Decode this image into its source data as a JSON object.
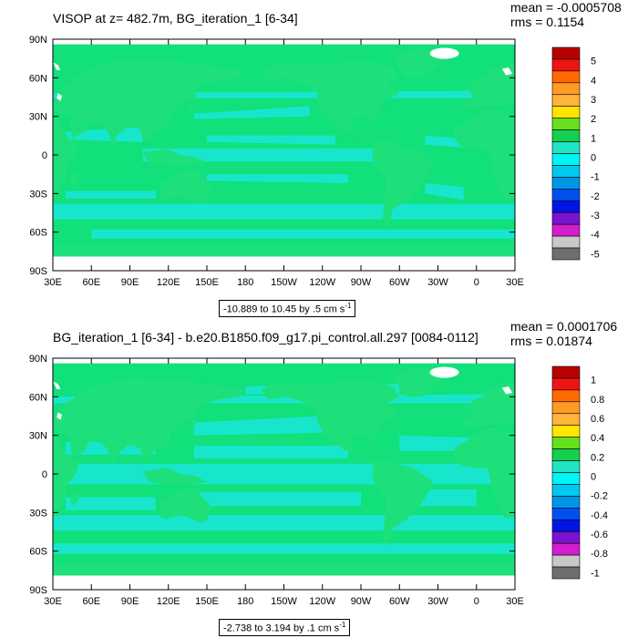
{
  "panels": [
    {
      "title": "VISOP at z= 482.7m, BG_iteration_1 [6-34]",
      "mean": "mean = -0.0005708",
      "rms": "rms = 0.1154",
      "range_label": "-10.889 to 10.45 by .5 cm s",
      "range_sup": "-1",
      "colorbar_labels": [
        "5",
        "4",
        "3",
        "2",
        "1",
        "0",
        "-1",
        "-2",
        "-3",
        "-4",
        "-5"
      ]
    },
    {
      "title": "BG_iteration_1 [6-34] - b.e20.B1850.f09_g17.pi_control.all.297 [0084-0112]",
      "mean": "mean = 0.0001706",
      "rms": "rms = 0.01874",
      "range_label": "-2.738 to 3.194 by .1 cm s",
      "range_sup": "-1",
      "colorbar_labels": [
        "1",
        "0.8",
        "0.6",
        "0.4",
        "0.2",
        "0",
        "-0.2",
        "-0.4",
        "-0.6",
        "-0.8",
        "-1"
      ]
    }
  ],
  "colors": {
    "ocean_main": "#12e07a",
    "ocean_cyan": "#18e6cc",
    "land": "#1ee07b",
    "colorbar": [
      "#b80000",
      "#ee1515",
      "#ff6a00",
      "#ff9b24",
      "#ffb43c",
      "#ffe600",
      "#66e01c",
      "#15cf4e",
      "#1ee6c4",
      "#00f5f5",
      "#00c8f0",
      "#0096e6",
      "#0050f0",
      "#0014e6",
      "#7a14d0",
      "#d21ecf",
      "#c8c8c8",
      "#6e6e6e"
    ]
  },
  "chart_data": [
    {
      "type": "heatmap",
      "title": "VISOP at z= 482.7m, BG_iteration_1 [6-34]",
      "x_tick_labels": [
        "30E",
        "60E",
        "90E",
        "120E",
        "150E",
        "180",
        "150W",
        "120W",
        "90W",
        "60W",
        "30W",
        "0",
        "30E"
      ],
      "y_tick_labels": [
        "90N",
        "60N",
        "30N",
        "0",
        "30S",
        "60S",
        "90S"
      ],
      "xlim": [
        30,
        390
      ],
      "ylim": [
        -90,
        90
      ],
      "colorbar_levels": [
        5,
        4,
        3,
        2,
        1,
        0,
        -1,
        -2,
        -3,
        -4,
        -5
      ],
      "mean": -0.0005708,
      "rms": 0.1154,
      "units": "cm s-1",
      "data_range": [
        -10.889,
        10.45
      ],
      "interval": 0.5
    },
    {
      "type": "heatmap",
      "title": "BG_iteration_1 [6-34] - b.e20.B1850.f09_g17.pi_control.all.297 [0084-0112]",
      "x_tick_labels": [
        "30E",
        "60E",
        "90E",
        "120E",
        "150E",
        "180",
        "150W",
        "120W",
        "90W",
        "60W",
        "30W",
        "0",
        "30E"
      ],
      "y_tick_labels": [
        "90N",
        "60N",
        "30N",
        "0",
        "30S",
        "60S",
        "90S"
      ],
      "xlim": [
        30,
        390
      ],
      "ylim": [
        -90,
        90
      ],
      "colorbar_levels": [
        1,
        0.8,
        0.6,
        0.4,
        0.2,
        0,
        -0.2,
        -0.4,
        -0.6,
        -0.8,
        -1
      ],
      "mean": 0.0001706,
      "rms": 0.01874,
      "units": "cm s-1",
      "data_range": [
        -2.738,
        3.194
      ],
      "interval": 0.1
    }
  ]
}
